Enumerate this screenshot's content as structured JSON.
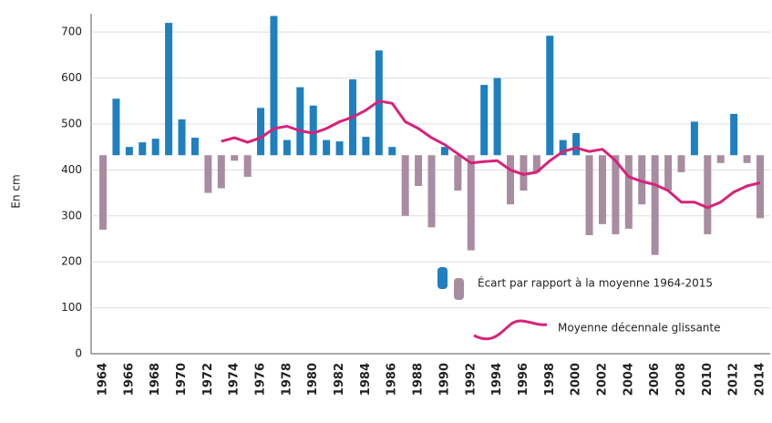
{
  "chart_data": {
    "type": "bar",
    "y_label": "En cm",
    "categories": [
      "1964",
      null,
      "1966",
      null,
      "1968",
      null,
      "1970",
      null,
      "1972",
      null,
      "1974",
      null,
      "1976",
      null,
      "1978",
      null,
      "1980",
      null,
      "1982",
      null,
      "1984",
      null,
      "1986",
      null,
      "1988",
      null,
      "1990",
      null,
      "1992",
      null,
      "1994",
      null,
      "1996",
      null,
      "1998",
      null,
      "2000",
      null,
      "2002",
      null,
      "2004",
      null,
      "2006",
      null,
      "2008",
      null,
      "2010",
      null,
      "2012",
      null,
      "2014"
    ],
    "reference_value": 432,
    "series": [
      {
        "name": "Écart par rapport à la moyenne 1964-2015",
        "type": "bar",
        "color": "#1f7fbf",
        "color_below": "#a88c9f",
        "values": [
          270,
          555,
          450,
          460,
          468,
          720,
          510,
          470,
          350,
          360,
          420,
          385,
          535,
          735,
          465,
          580,
          540,
          465,
          462,
          597,
          472,
          660,
          450,
          300,
          365,
          275,
          450,
          355,
          225,
          585,
          600,
          325,
          355,
          395,
          692,
          465,
          480,
          258,
          282,
          260,
          272,
          325,
          215,
          355,
          395,
          505,
          260,
          415,
          522,
          415,
          295
        ]
      },
      {
        "name": "Moyenne décennale glissante",
        "type": "line",
        "color": "#d6237a",
        "values": [
          null,
          null,
          null,
          null,
          null,
          null,
          null,
          null,
          null,
          462,
          470,
          460,
          470,
          490,
          495,
          485,
          480,
          490,
          505,
          515,
          530,
          550,
          545,
          505,
          490,
          470,
          455,
          435,
          415,
          418,
          420,
          400,
          390,
          395,
          420,
          440,
          448,
          440,
          445,
          420,
          385,
          375,
          368,
          355,
          330,
          330,
          318,
          330,
          352,
          365,
          372
        ]
      }
    ],
    "ylim": [
      0,
      740
    ],
    "yticks": [
      0,
      100,
      200,
      300,
      400,
      500,
      600,
      700
    ],
    "grid": true
  }
}
